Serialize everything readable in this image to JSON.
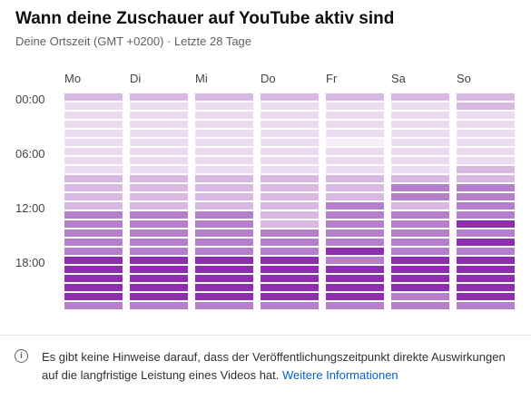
{
  "header": {
    "title": "Wann deine Zuschauer auf YouTube aktiv sind",
    "subtitle": "Deine Ortszeit (GMT +0200) · Letzte 28 Tage"
  },
  "info": {
    "icon": "info-icon",
    "text": "Es gibt keine Hinweise darauf, dass der Veröffentlichungszeitpunkt direkte Auswirkungen auf die langfristige Leistung eines Videos hat. ",
    "link": "Weitere Informationen"
  },
  "colors": {
    "accent": "#7b1fa2",
    "link": "#065fd4"
  },
  "chart_data": {
    "type": "heatmap",
    "days": [
      "Mo",
      "Di",
      "Mi",
      "Do",
      "Fr",
      "Sa",
      "So"
    ],
    "time_labels": [
      "00:00",
      "06:00",
      "12:00",
      "18:00"
    ],
    "hours_per_day": 24,
    "levels_scale": "0 (lowest) – 5 (highest activity)",
    "levels": [
      [
        2,
        1,
        1,
        1,
        1,
        1,
        1,
        1,
        1,
        2,
        2,
        2,
        2,
        3,
        3,
        3,
        3,
        3,
        4,
        4,
        4,
        4,
        4,
        3
      ],
      [
        2,
        1,
        1,
        1,
        1,
        1,
        1,
        1,
        1,
        2,
        2,
        2,
        2,
        3,
        3,
        3,
        3,
        3,
        4,
        4,
        4,
        4,
        4,
        3
      ],
      [
        2,
        1,
        1,
        1,
        1,
        1,
        1,
        1,
        1,
        2,
        2,
        2,
        2,
        3,
        3,
        3,
        3,
        3,
        4,
        4,
        4,
        4,
        4,
        3
      ],
      [
        2,
        1,
        1,
        1,
        1,
        1,
        1,
        1,
        1,
        2,
        2,
        2,
        2,
        2,
        2,
        3,
        3,
        3,
        4,
        4,
        4,
        4,
        4,
        3
      ],
      [
        2,
        1,
        1,
        1,
        1,
        0,
        1,
        1,
        1,
        2,
        2,
        2,
        3,
        3,
        3,
        3,
        3,
        4,
        3,
        4,
        4,
        4,
        4,
        3
      ],
      [
        2,
        1,
        1,
        1,
        1,
        1,
        1,
        1,
        1,
        2,
        3,
        3,
        2,
        3,
        3,
        3,
        3,
        3,
        4,
        4,
        4,
        4,
        3,
        3
      ],
      [
        2,
        2,
        1,
        1,
        1,
        1,
        1,
        1,
        2,
        2,
        3,
        3,
        3,
        3,
        4,
        3,
        4,
        3,
        4,
        4,
        4,
        4,
        4,
        3
      ]
    ]
  }
}
